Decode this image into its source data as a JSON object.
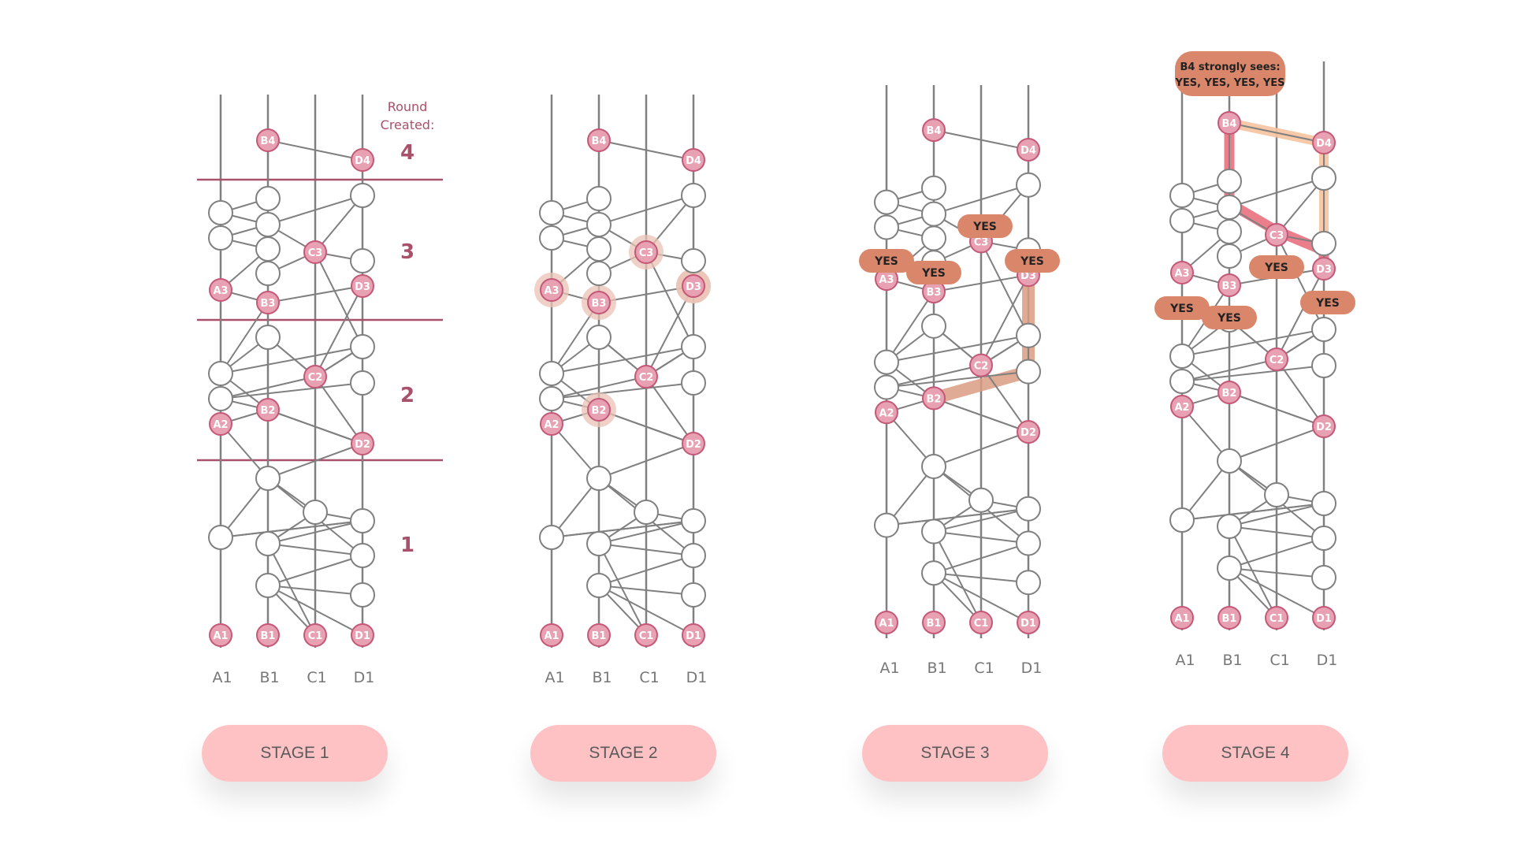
{
  "colors": {
    "line": "#808080",
    "event_fill": "#ffffff",
    "witness_fill": "#e7a1b2",
    "witness_stroke": "#c45877",
    "round_text": "#a9506a",
    "yes_pill": "#d9866b",
    "button": "#ffc2c4",
    "halo": "#eac2b4",
    "path_orange": "#d99c83",
    "path_red": "#e9707e",
    "path_peach": "#f6c39f"
  },
  "round_header": {
    "line1": "Round",
    "line2": "Created:"
  },
  "rounds": [
    "4",
    "3",
    "2",
    "1"
  ],
  "column_labels": [
    "A1",
    "B1",
    "C1",
    "D1"
  ],
  "yes_label": "YES",
  "callout": {
    "line1": "B4 strongly sees:",
    "line2": "YES, YES, YES, YES"
  },
  "stages": [
    {
      "button": "STAGE 1"
    },
    {
      "button": "STAGE 2"
    },
    {
      "button": "STAGE 3"
    },
    {
      "button": "STAGE 4"
    }
  ],
  "witnesses": {
    "A1": "A1",
    "B1": "B1",
    "C1": "C1",
    "D1": "D1",
    "A2": "A2",
    "B2": "B2",
    "C2": "C2",
    "D2": "D2",
    "A3": "A3",
    "B3": "B3",
    "C3": "C3",
    "D3": "D3",
    "B4": "B4",
    "D4": "D4"
  }
}
